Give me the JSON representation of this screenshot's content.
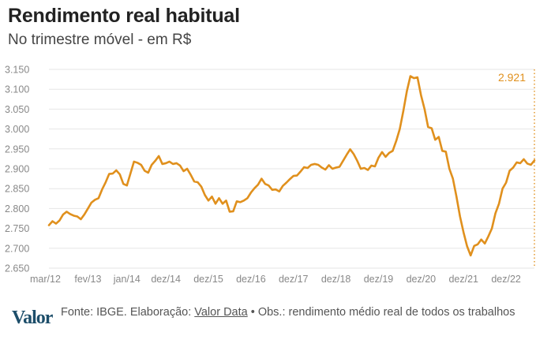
{
  "header": {
    "title": "Rendimento real habitual",
    "subtitle": "No trimestre móvel - em R$"
  },
  "footer": {
    "logo_text": "Valor",
    "source_prefix": "Fonte: IBGE. Elaboração: ",
    "source_link": "Valor Data",
    "source_suffix": " • Obs.: rendimento médio real de todos os trabalhos"
  },
  "colors": {
    "line": "#e0901d",
    "grid": "#e6e6e6",
    "tick_text": "#888888",
    "logo": "#1d4e6a"
  },
  "chart_data": {
    "type": "line",
    "title": "Rendimento real habitual",
    "subtitle": "No trimestre móvel - em R$",
    "xlabel": "",
    "ylabel": "",
    "ylim": [
      2650,
      3150
    ],
    "yticks": [
      2650,
      2700,
      2750,
      2800,
      2850,
      2900,
      2950,
      3000,
      3050,
      3100,
      3150
    ],
    "ytick_labels": [
      "2.650",
      "2.700",
      "2.750",
      "2.800",
      "2.850",
      "2.900",
      "2.950",
      "3.000",
      "3.050",
      "3.100",
      "3.150"
    ],
    "x_start": "mar/12",
    "xticks": [
      {
        "index": 0,
        "label": "mar/12"
      },
      {
        "index": 11,
        "label": "fev/13"
      },
      {
        "index": 22,
        "label": "jan/14"
      },
      {
        "index": 33,
        "label": "dez/14"
      },
      {
        "index": 45,
        "label": "dez/15"
      },
      {
        "index": 57,
        "label": "dez/16"
      },
      {
        "index": 69,
        "label": "dez/17"
      },
      {
        "index": 81,
        "label": "dez/18"
      },
      {
        "index": 93,
        "label": "dez/19"
      },
      {
        "index": 105,
        "label": "dez/20"
      },
      {
        "index": 117,
        "label": "dez/21"
      },
      {
        "index": 129,
        "label": "dez/22"
      }
    ],
    "last_value_label": "2.921",
    "series": [
      {
        "name": "Rendimento real habitual",
        "values": [
          2758,
          2768,
          2762,
          2770,
          2785,
          2792,
          2786,
          2782,
          2780,
          2773,
          2785,
          2800,
          2815,
          2822,
          2826,
          2848,
          2866,
          2887,
          2888,
          2896,
          2886,
          2862,
          2858,
          2888,
          2918,
          2915,
          2910,
          2895,
          2890,
          2910,
          2920,
          2932,
          2912,
          2914,
          2918,
          2912,
          2914,
          2908,
          2894,
          2900,
          2885,
          2868,
          2866,
          2855,
          2834,
          2820,
          2830,
          2812,
          2826,
          2812,
          2820,
          2792,
          2793,
          2818,
          2816,
          2820,
          2826,
          2840,
          2851,
          2860,
          2875,
          2862,
          2858,
          2847,
          2848,
          2843,
          2857,
          2865,
          2874,
          2882,
          2883,
          2893,
          2904,
          2902,
          2910,
          2912,
          2910,
          2903,
          2898,
          2909,
          2900,
          2903,
          2905,
          2920,
          2935,
          2949,
          2937,
          2920,
          2900,
          2902,
          2897,
          2908,
          2906,
          2928,
          2942,
          2930,
          2940,
          2945,
          2970,
          3000,
          3045,
          3095,
          3133,
          3128,
          3130,
          3085,
          3050,
          3005,
          3002,
          2973,
          2980,
          2945,
          2943,
          2900,
          2875,
          2830,
          2780,
          2740,
          2705,
          2682,
          2706,
          2710,
          2722,
          2712,
          2730,
          2750,
          2788,
          2812,
          2850,
          2865,
          2895,
          2903,
          2916,
          2914,
          2924,
          2913,
          2910,
          2921
        ]
      }
    ]
  }
}
